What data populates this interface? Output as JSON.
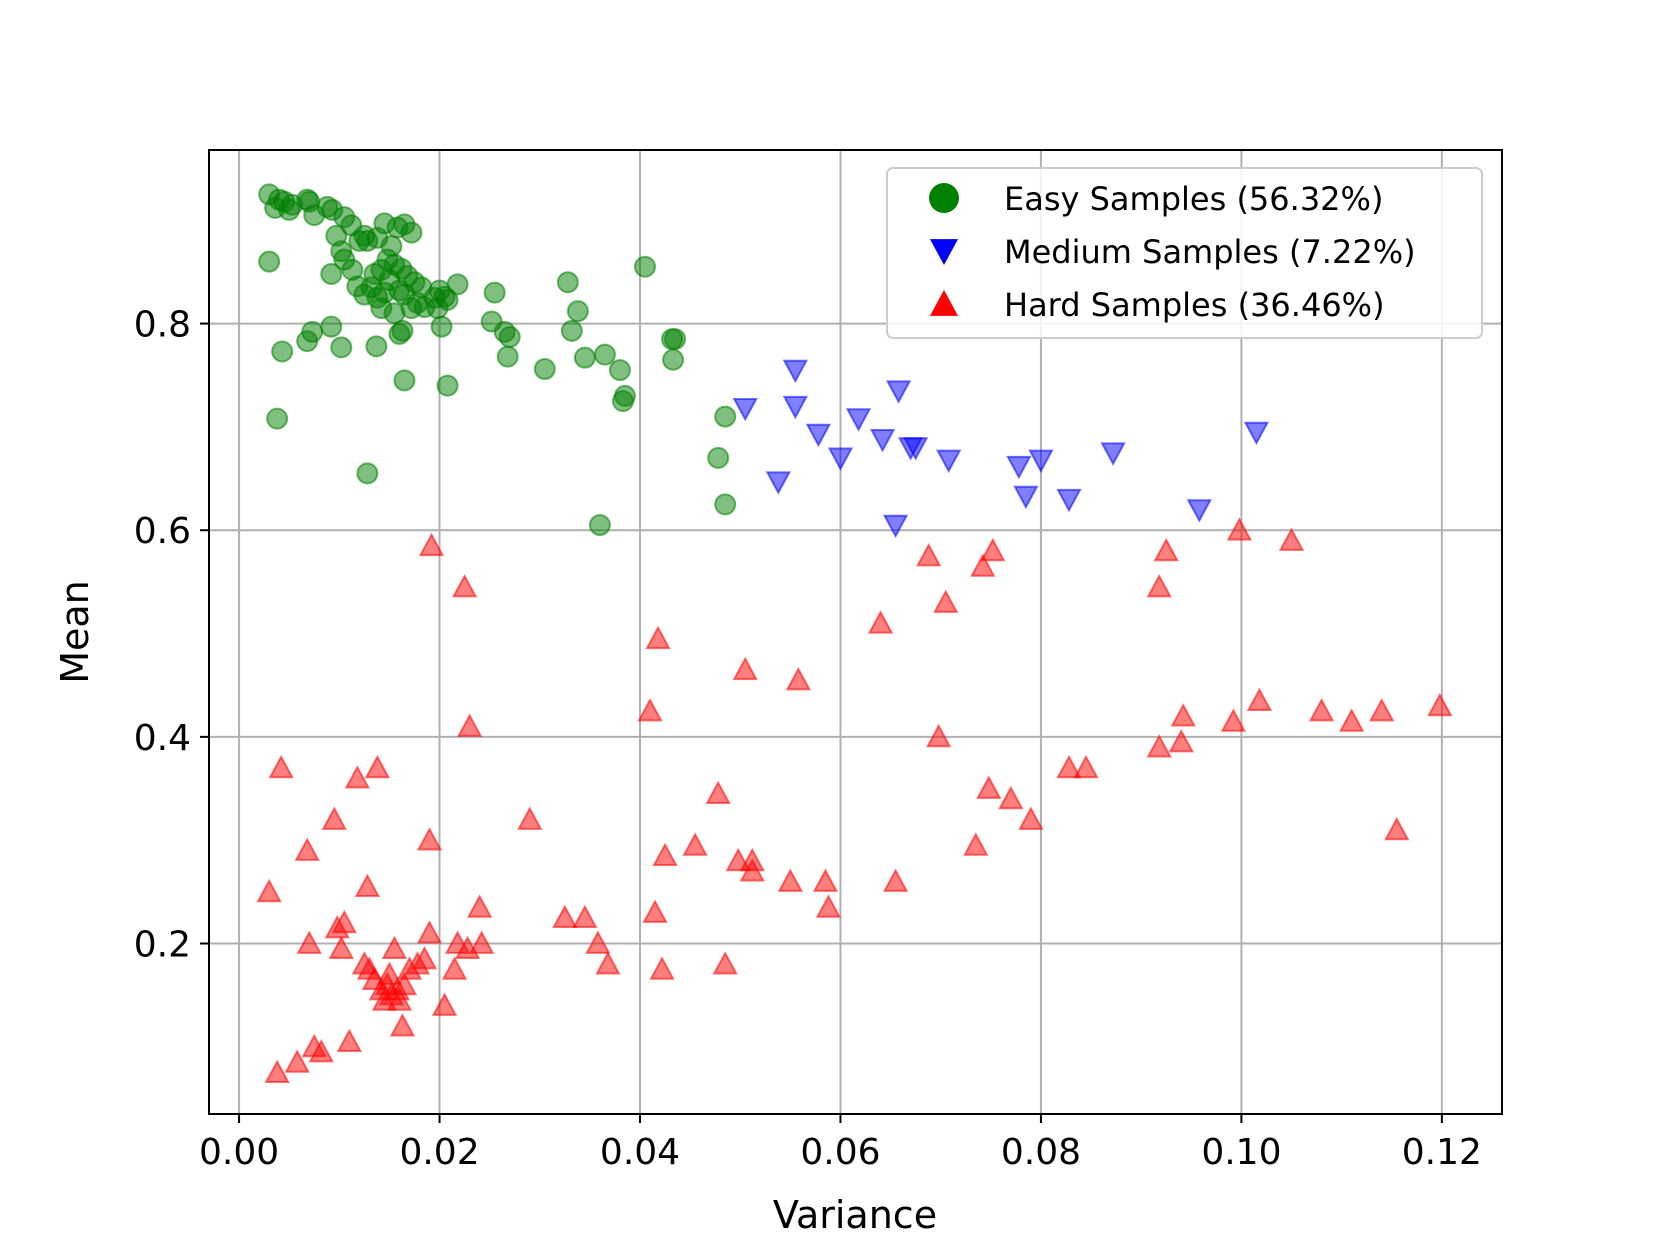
{
  "chart_data": {
    "type": "scatter",
    "title": "",
    "xlabel": "Variance",
    "ylabel": "Mean",
    "xlim": [
      -0.003,
      0.126
    ],
    "ylim": [
      0.035,
      0.968
    ],
    "xticks": [
      0.0,
      0.02,
      0.04,
      0.06,
      0.08,
      0.1,
      0.12
    ],
    "xtick_labels": [
      "0.00",
      "0.02",
      "0.04",
      "0.06",
      "0.08",
      "0.10",
      "0.12"
    ],
    "yticks": [
      0.2,
      0.4,
      0.6,
      0.8
    ],
    "ytick_labels": [
      "0.2",
      "0.4",
      "0.6",
      "0.8"
    ],
    "grid": true,
    "legend_position": "top-right",
    "series": [
      {
        "name": "Easy Samples (56.32%)",
        "marker": "circle",
        "color": "#008000",
        "points": [
          [
            0.003,
            0.925
          ],
          [
            0.0036,
            0.912
          ],
          [
            0.004,
            0.92
          ],
          [
            0.0045,
            0.918
          ],
          [
            0.005,
            0.91
          ],
          [
            0.0053,
            0.915
          ],
          [
            0.0068,
            0.92
          ],
          [
            0.007,
            0.918
          ],
          [
            0.0075,
            0.905
          ],
          [
            0.0088,
            0.913
          ],
          [
            0.0093,
            0.91
          ],
          [
            0.0105,
            0.903
          ],
          [
            0.0112,
            0.895
          ],
          [
            0.012,
            0.88
          ],
          [
            0.0102,
            0.87
          ],
          [
            0.0097,
            0.885
          ],
          [
            0.0125,
            0.885
          ],
          [
            0.0128,
            0.88
          ],
          [
            0.0138,
            0.883
          ],
          [
            0.0145,
            0.897
          ],
          [
            0.0158,
            0.893
          ],
          [
            0.0165,
            0.896
          ],
          [
            0.0172,
            0.888
          ],
          [
            0.0152,
            0.875
          ],
          [
            0.0148,
            0.862
          ],
          [
            0.0142,
            0.852
          ],
          [
            0.0135,
            0.848
          ],
          [
            0.0155,
            0.857
          ],
          [
            0.0162,
            0.853
          ],
          [
            0.0168,
            0.846
          ],
          [
            0.0175,
            0.84
          ],
          [
            0.0182,
            0.835
          ],
          [
            0.0145,
            0.83
          ],
          [
            0.0138,
            0.825
          ],
          [
            0.015,
            0.842
          ],
          [
            0.016,
            0.832
          ],
          [
            0.0165,
            0.828
          ],
          [
            0.0178,
            0.82
          ],
          [
            0.0185,
            0.816
          ],
          [
            0.0195,
            0.825
          ],
          [
            0.02,
            0.832
          ],
          [
            0.0205,
            0.826
          ],
          [
            0.0198,
            0.815
          ],
          [
            0.0208,
            0.823
          ],
          [
            0.0218,
            0.838
          ],
          [
            0.0132,
            0.835
          ],
          [
            0.0125,
            0.828
          ],
          [
            0.0118,
            0.836
          ],
          [
            0.0113,
            0.852
          ],
          [
            0.0105,
            0.862
          ],
          [
            0.0092,
            0.848
          ],
          [
            0.0142,
            0.815
          ],
          [
            0.0155,
            0.81
          ],
          [
            0.0172,
            0.815
          ],
          [
            0.003,
            0.86
          ],
          [
            0.0043,
            0.773
          ],
          [
            0.0068,
            0.783
          ],
          [
            0.0073,
            0.792
          ],
          [
            0.0092,
            0.797
          ],
          [
            0.0102,
            0.777
          ],
          [
            0.0137,
            0.778
          ],
          [
            0.016,
            0.79
          ],
          [
            0.0163,
            0.793
          ],
          [
            0.0202,
            0.797
          ],
          [
            0.0208,
            0.74
          ],
          [
            0.0165,
            0.745
          ],
          [
            0.0038,
            0.708
          ],
          [
            0.0128,
            0.655
          ],
          [
            0.0252,
            0.802
          ],
          [
            0.0255,
            0.83
          ],
          [
            0.0265,
            0.792
          ],
          [
            0.027,
            0.787
          ],
          [
            0.0268,
            0.768
          ],
          [
            0.0305,
            0.756
          ],
          [
            0.0328,
            0.84
          ],
          [
            0.0332,
            0.793
          ],
          [
            0.0338,
            0.812
          ],
          [
            0.0345,
            0.767
          ],
          [
            0.0365,
            0.77
          ],
          [
            0.038,
            0.755
          ],
          [
            0.0383,
            0.725
          ],
          [
            0.0385,
            0.73
          ],
          [
            0.0405,
            0.855
          ],
          [
            0.0432,
            0.785
          ],
          [
            0.0435,
            0.785
          ],
          [
            0.0433,
            0.765
          ],
          [
            0.036,
            0.605
          ],
          [
            0.0478,
            0.67
          ],
          [
            0.0485,
            0.71
          ],
          [
            0.0485,
            0.625
          ]
        ]
      },
      {
        "name": "Medium Samples (7.22%)",
        "marker": "triangle-down",
        "color": "#0000ff",
        "points": [
          [
            0.0505,
            0.718
          ],
          [
            0.0538,
            0.647
          ],
          [
            0.0555,
            0.755
          ],
          [
            0.0555,
            0.72
          ],
          [
            0.0578,
            0.693
          ],
          [
            0.06,
            0.67
          ],
          [
            0.0618,
            0.708
          ],
          [
            0.0642,
            0.688
          ],
          [
            0.0655,
            0.605
          ],
          [
            0.0658,
            0.735
          ],
          [
            0.067,
            0.68
          ],
          [
            0.0675,
            0.68
          ],
          [
            0.0708,
            0.668
          ],
          [
            0.0778,
            0.662
          ],
          [
            0.0785,
            0.633
          ],
          [
            0.08,
            0.668
          ],
          [
            0.0828,
            0.63
          ],
          [
            0.0872,
            0.675
          ],
          [
            0.0958,
            0.62
          ],
          [
            0.1015,
            0.695
          ]
        ]
      },
      {
        "name": "Hard Samples (36.46%)",
        "marker": "triangle-up",
        "color": "#ff0000",
        "points": [
          [
            0.003,
            0.25
          ],
          [
            0.0038,
            0.075
          ],
          [
            0.0042,
            0.37
          ],
          [
            0.0058,
            0.085
          ],
          [
            0.0068,
            0.29
          ],
          [
            0.007,
            0.2
          ],
          [
            0.0075,
            0.1
          ],
          [
            0.0082,
            0.095
          ],
          [
            0.0095,
            0.32
          ],
          [
            0.0098,
            0.215
          ],
          [
            0.0102,
            0.195
          ],
          [
            0.0105,
            0.22
          ],
          [
            0.011,
            0.105
          ],
          [
            0.0118,
            0.36
          ],
          [
            0.0125,
            0.18
          ],
          [
            0.0128,
            0.255
          ],
          [
            0.013,
            0.175
          ],
          [
            0.0135,
            0.165
          ],
          [
            0.0138,
            0.37
          ],
          [
            0.0142,
            0.155
          ],
          [
            0.0145,
            0.145
          ],
          [
            0.0148,
            0.16
          ],
          [
            0.015,
            0.17
          ],
          [
            0.0152,
            0.15
          ],
          [
            0.0155,
            0.195
          ],
          [
            0.0158,
            0.155
          ],
          [
            0.016,
            0.145
          ],
          [
            0.0163,
            0.12
          ],
          [
            0.0165,
            0.16
          ],
          [
            0.017,
            0.175
          ],
          [
            0.0178,
            0.18
          ],
          [
            0.0185,
            0.185
          ],
          [
            0.019,
            0.3
          ],
          [
            0.019,
            0.21
          ],
          [
            0.0192,
            0.585
          ],
          [
            0.0205,
            0.14
          ],
          [
            0.0215,
            0.175
          ],
          [
            0.0218,
            0.2
          ],
          [
            0.0225,
            0.545
          ],
          [
            0.0228,
            0.195
          ],
          [
            0.023,
            0.41
          ],
          [
            0.024,
            0.235
          ],
          [
            0.0242,
            0.2
          ],
          [
            0.029,
            0.32
          ],
          [
            0.0325,
            0.225
          ],
          [
            0.0345,
            0.225
          ],
          [
            0.0358,
            0.2
          ],
          [
            0.0368,
            0.18
          ],
          [
            0.041,
            0.425
          ],
          [
            0.0415,
            0.23
          ],
          [
            0.0418,
            0.495
          ],
          [
            0.0422,
            0.175
          ],
          [
            0.0425,
            0.285
          ],
          [
            0.0455,
            0.295
          ],
          [
            0.0478,
            0.345
          ],
          [
            0.0485,
            0.18
          ],
          [
            0.0498,
            0.28
          ],
          [
            0.0505,
            0.465
          ],
          [
            0.0512,
            0.28
          ],
          [
            0.0512,
            0.27
          ],
          [
            0.055,
            0.26
          ],
          [
            0.0558,
            0.455
          ],
          [
            0.0585,
            0.26
          ],
          [
            0.0588,
            0.235
          ],
          [
            0.064,
            0.51
          ],
          [
            0.0655,
            0.26
          ],
          [
            0.0688,
            0.575
          ],
          [
            0.0698,
            0.4
          ],
          [
            0.0705,
            0.53
          ],
          [
            0.0735,
            0.295
          ],
          [
            0.0742,
            0.565
          ],
          [
            0.0748,
            0.35
          ],
          [
            0.0752,
            0.58
          ],
          [
            0.077,
            0.34
          ],
          [
            0.079,
            0.32
          ],
          [
            0.0828,
            0.37
          ],
          [
            0.0845,
            0.37
          ],
          [
            0.0918,
            0.545
          ],
          [
            0.0918,
            0.39
          ],
          [
            0.0925,
            0.58
          ],
          [
            0.094,
            0.395
          ],
          [
            0.0942,
            0.42
          ],
          [
            0.0992,
            0.415
          ],
          [
            0.0998,
            0.6
          ],
          [
            0.1018,
            0.435
          ],
          [
            0.105,
            0.59
          ],
          [
            0.108,
            0.425
          ],
          [
            0.111,
            0.415
          ],
          [
            0.114,
            0.425
          ],
          [
            0.1155,
            0.31
          ],
          [
            0.1198,
            0.43
          ]
        ]
      }
    ]
  }
}
